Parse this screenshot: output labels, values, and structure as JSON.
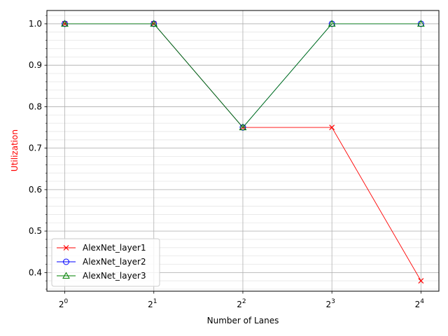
{
  "chart_data": {
    "type": "line",
    "xlabel": "Number of Lanes",
    "ylabel": "Utilization",
    "ylabel_color": "#ff0000",
    "x_scale": "log2",
    "x": [
      1,
      2,
      4,
      8,
      16
    ],
    "x_tick_labels": [
      {
        "base": "2",
        "exp": "0"
      },
      {
        "base": "2",
        "exp": "1"
      },
      {
        "base": "2",
        "exp": "2"
      },
      {
        "base": "2",
        "exp": "3"
      },
      {
        "base": "2",
        "exp": "4"
      }
    ],
    "y_ticks": [
      "0.4",
      "0.5",
      "0.6",
      "0.7",
      "0.8",
      "0.9",
      "1.0"
    ],
    "ylim": [
      0.355,
      1.032
    ],
    "xlim": [
      0.87,
      18.4
    ],
    "grid": true,
    "minor_grid": true,
    "legend_position": "lower-left",
    "series": [
      {
        "name": "AlexNet_layer1",
        "color": "#ff0000",
        "marker": "x",
        "values": [
          1.0,
          1.0,
          0.75,
          0.75,
          0.38
        ]
      },
      {
        "name": "AlexNet_layer2",
        "color": "#0000ff",
        "marker": "o",
        "values": [
          1.0,
          1.0,
          0.75,
          1.0,
          1.0
        ]
      },
      {
        "name": "AlexNet_layer3",
        "color": "#008000",
        "marker": "^",
        "values": [
          1.0,
          1.0,
          0.75,
          1.0,
          1.0
        ]
      }
    ]
  }
}
